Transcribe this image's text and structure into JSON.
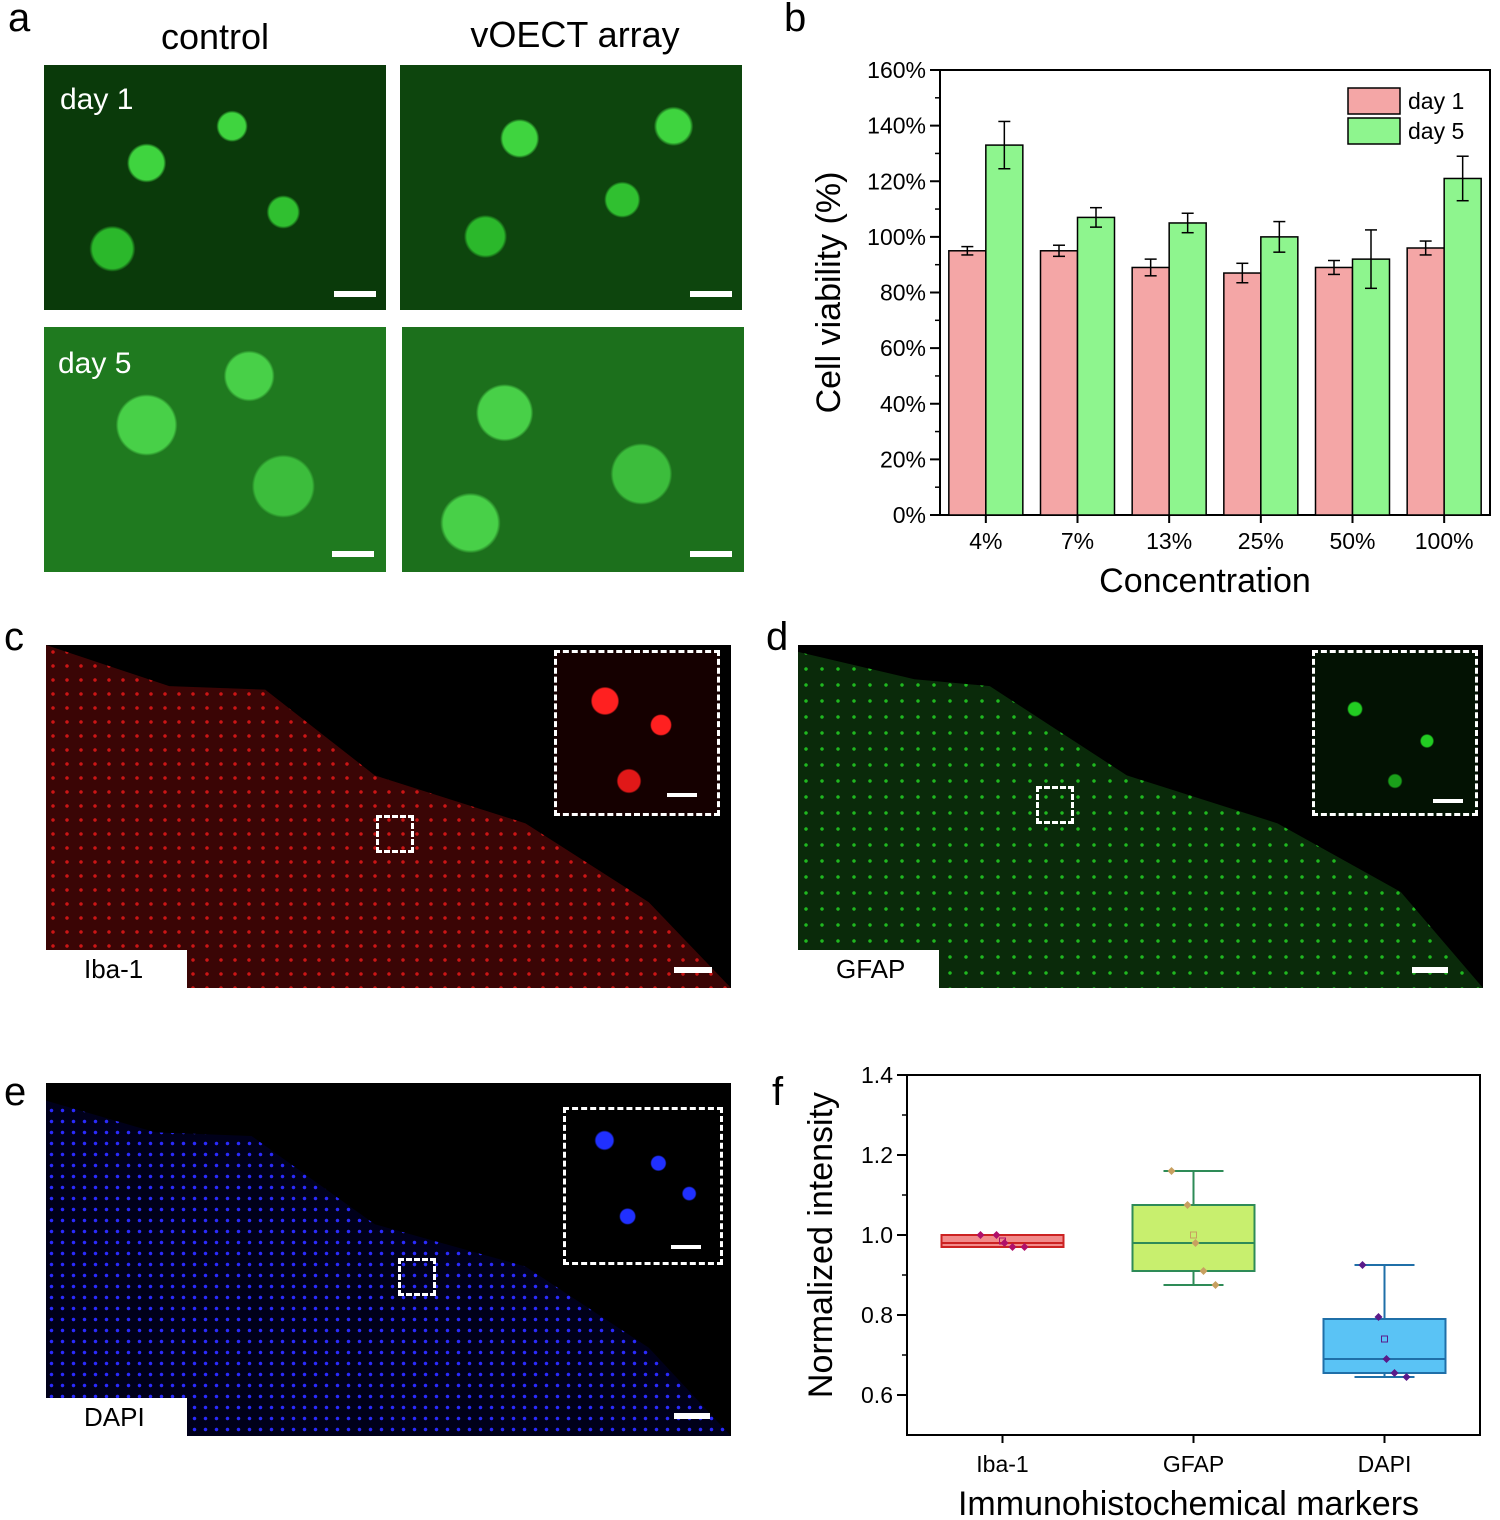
{
  "panels": {
    "a": "a",
    "b": "b",
    "c": "c",
    "d": "d",
    "e": "e",
    "f": "f"
  },
  "panel_a": {
    "col_control": "control",
    "col_array": "vOECT array",
    "row_day1": "day 1",
    "row_day5": "day 5"
  },
  "panel_c": {
    "stain": "Iba-1",
    "color": "#ff1a1a"
  },
  "panel_d": {
    "stain": "GFAP",
    "color": "#22dd22"
  },
  "panel_e": {
    "stain": "DAPI",
    "color": "#1a1aff"
  },
  "chart_data": [
    {
      "type": "bar",
      "ylabel": "Cell viability (%)",
      "xlabel": "Concentration",
      "categories": [
        "4%",
        "7%",
        "13%",
        "25%",
        "50%",
        "100%"
      ],
      "ylim": [
        0,
        160
      ],
      "yticks": [
        "0%",
        "20%",
        "40%",
        "60%",
        "80%",
        "100%",
        "120%",
        "140%",
        "160%"
      ],
      "legend_position": "top-right",
      "series": [
        {
          "name": "day 1",
          "color": "#f4a6a6",
          "values": [
            95,
            95,
            89,
            87,
            89,
            96
          ],
          "errors": [
            1.5,
            2,
            3,
            3.5,
            2.5,
            2.5
          ]
        },
        {
          "name": "day 5",
          "color": "#8ef58e",
          "values": [
            133,
            107,
            105,
            100,
            92,
            121
          ],
          "errors": [
            8.5,
            3.5,
            3.5,
            5.5,
            10.5,
            8
          ]
        }
      ]
    },
    {
      "type": "box",
      "ylabel": "Normalized intensity",
      "xlabel": "Immunohistochemical markers",
      "categories": [
        "Iba-1",
        "GFAP",
        "DAPI"
      ],
      "ylim": [
        0.5,
        1.4
      ],
      "yticks": [
        "0.6",
        "0.8",
        "1.0",
        "1.2",
        "1.4"
      ],
      "boxes": [
        {
          "name": "Iba-1",
          "fill": "#f28b8b",
          "edge": "#cc2222",
          "q1": 0.97,
          "median": 0.98,
          "q3": 1.0,
          "whisker_low": 0.97,
          "whisker_high": 1.0,
          "mean": 0.985,
          "points": [
            1.0,
            1.0,
            0.98,
            0.97,
            0.97
          ],
          "point_color": "#b0106a"
        },
        {
          "name": "GFAP",
          "fill": "#c8ef6e",
          "edge": "#2e8b57",
          "q1": 0.91,
          "median": 0.98,
          "q3": 1.075,
          "whisker_low": 0.875,
          "whisker_high": 1.16,
          "mean": 1.0,
          "points": [
            1.16,
            1.075,
            0.98,
            0.91,
            0.875
          ],
          "point_color": "#c8a060"
        },
        {
          "name": "DAPI",
          "fill": "#5ac3f5",
          "edge": "#1f6fa8",
          "q1": 0.655,
          "median": 0.69,
          "q3": 0.79,
          "whisker_low": 0.645,
          "whisker_high": 0.925,
          "mean": 0.74,
          "points": [
            0.925,
            0.795,
            0.69,
            0.655,
            0.645
          ],
          "point_color": "#5a1a8a"
        }
      ]
    }
  ]
}
